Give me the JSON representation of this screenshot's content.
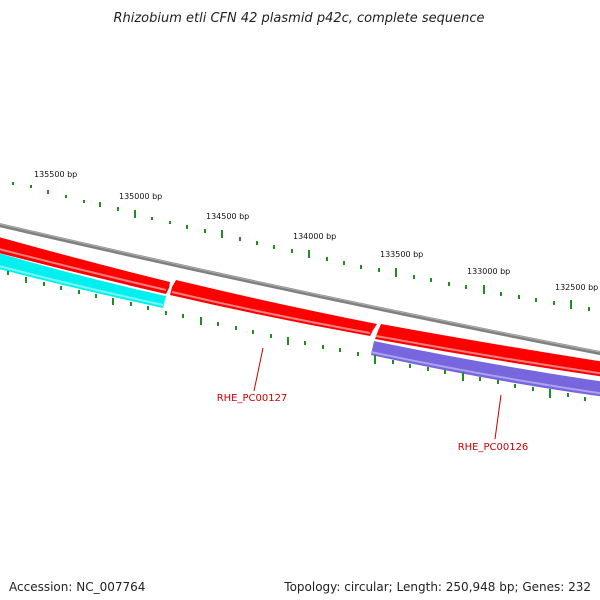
{
  "title": "Rhizobium etli CFN 42 plasmid p42c, complete sequence",
  "tick_labels": [
    "135500 bp",
    "135000 bp",
    "134500 bp",
    "134000 bp",
    "133500 bp",
    "133000 bp",
    "132500 bp"
  ],
  "genes": [
    {
      "locus": "RHE_PC00127",
      "strand": "forward",
      "color": "#ff0000"
    },
    {
      "locus": "RHE_PC00126",
      "strand": "reverse",
      "color": "#7766dd"
    }
  ],
  "colors": {
    "backbone": "#808080",
    "forward_feature": "#ff0000",
    "reverse_feature_cyan": "#00f0f0",
    "reverse_feature_purple": "#7766dd",
    "tick": "#228b22",
    "label": "#cc0000"
  },
  "footer": {
    "accession": "Accession: NC_007764",
    "summary": "Topology: circular; Length: 250,948 bp; Genes: 232"
  }
}
